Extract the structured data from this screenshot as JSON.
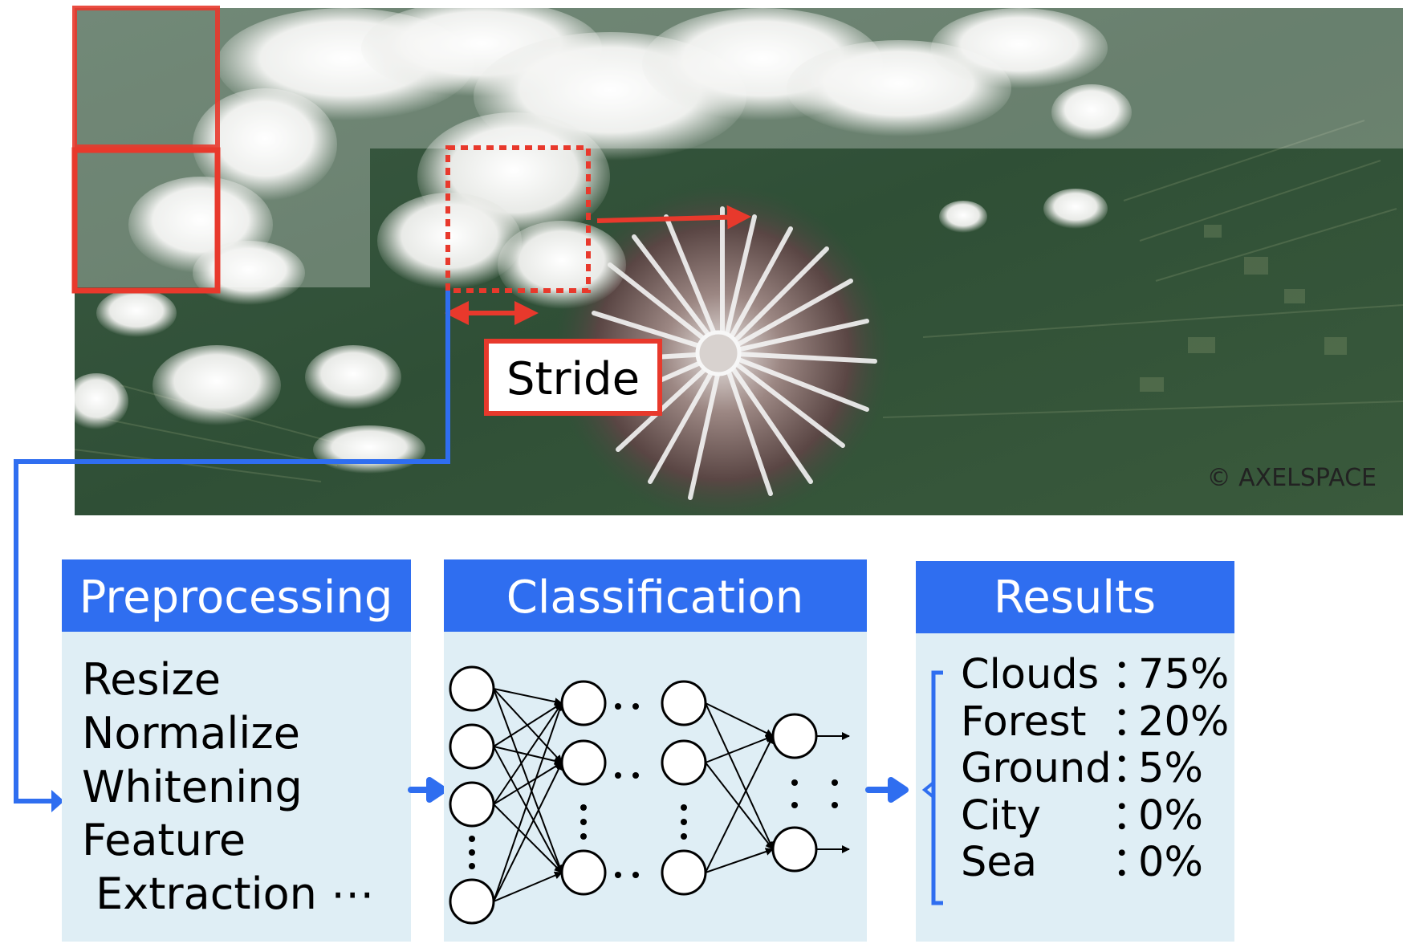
{
  "colors": {
    "accent_blue": "#2f6ef0",
    "frame_red": "#e8392c",
    "panel_bg": "#dfeef5",
    "highlight_red": "#e8392c"
  },
  "satellite": {
    "credit": "© AXELSPACE",
    "stride_label": "Stride"
  },
  "panels": {
    "preprocessing": {
      "title": "Preprocessing",
      "items": [
        "Resize",
        "Normalize",
        "Whitening",
        "Feature",
        " Extraction ⋯"
      ]
    },
    "classification": {
      "title": "Classification"
    },
    "results": {
      "title": "Results",
      "rows": [
        {
          "label": "Clouds",
          "sep": "：",
          "value": "75%"
        },
        {
          "label": "Forest",
          "sep": "：",
          "value": "20%"
        },
        {
          "label": "Ground",
          "sep": "：",
          "value": "5%"
        },
        {
          "label": "City",
          "sep": "：",
          "value": "0%"
        },
        {
          "label": "Sea",
          "sep": "：",
          "value": "0%"
        }
      ]
    }
  }
}
